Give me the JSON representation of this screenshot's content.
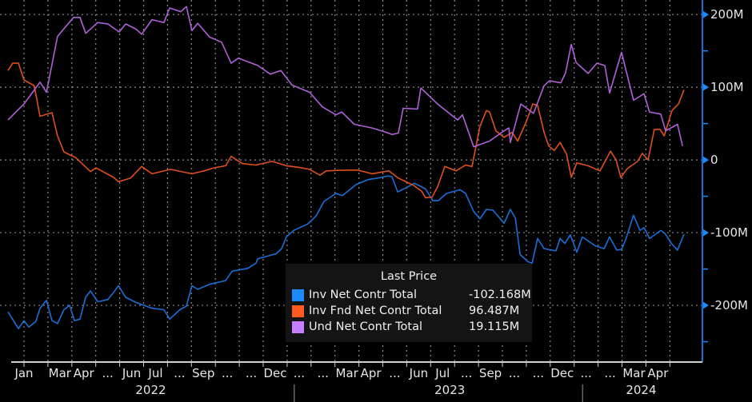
{
  "chart_data": {
    "type": "line",
    "x_unit_note_key": "x values are months since 2022-02-01",
    "xlim": [
      -1.003,
      28.36
    ],
    "ylim": [
      -278,
      220
    ],
    "grid": true,
    "legend_placement": "bottom-center",
    "legend": {
      "title": "Last Price",
      "entries": [
        {
          "name": "Inv Net Contr Total",
          "last": "-102.168M",
          "color": "#1a8cff"
        },
        {
          "name": "Inv Fnd Net Contr Total",
          "last": "96.487M",
          "color": "#ff5a1f"
        },
        {
          "name": "Und Net Contr Total",
          "last": "19.115M",
          "color": "#c77dff"
        }
      ]
    },
    "y_ticks": [
      {
        "value": 200,
        "label": "200M"
      },
      {
        "value": 100,
        "label": "100M"
      },
      {
        "value": 0,
        "label": "0"
      },
      {
        "value": -100,
        "label": "-100M"
      },
      {
        "value": -200,
        "label": "-200M"
      }
    ],
    "y_minor_ticks": [
      150,
      50,
      -50,
      -150,
      -250
    ],
    "x_tick_labels": [
      {
        "m": -0.5,
        "label": "Jan"
      },
      {
        "m": 1.5,
        "label": "Mar"
      },
      {
        "m": 2.5,
        "label": "Apr"
      },
      {
        "m": 3.5,
        "label": "..."
      },
      {
        "m": 4.5,
        "label": "Jun"
      },
      {
        "m": 5.5,
        "label": "Jul"
      },
      {
        "m": 6.5,
        "label": "..."
      },
      {
        "m": 7.5,
        "label": "Sep"
      },
      {
        "m": 8.5,
        "label": "..."
      },
      {
        "m": 9.5,
        "label": "..."
      },
      {
        "m": 10.5,
        "label": "Dec"
      },
      {
        "m": 11.5,
        "label": "..."
      },
      {
        "m": 12.5,
        "label": "..."
      },
      {
        "m": 13.5,
        "label": "Mar"
      },
      {
        "m": 14.5,
        "label": "Apr"
      },
      {
        "m": 15.5,
        "label": "..."
      },
      {
        "m": 16.5,
        "label": "Jun"
      },
      {
        "m": 17.5,
        "label": "Jul"
      },
      {
        "m": 18.5,
        "label": "..."
      },
      {
        "m": 19.5,
        "label": "Sep"
      },
      {
        "m": 20.5,
        "label": "..."
      },
      {
        "m": 21.5,
        "label": "..."
      },
      {
        "m": 22.5,
        "label": "Dec"
      },
      {
        "m": 23.5,
        "label": "..."
      },
      {
        "m": 24.5,
        "label": "..."
      },
      {
        "m": 25.5,
        "label": "Mar"
      },
      {
        "m": 26.5,
        "label": "Apr"
      }
    ],
    "year_labels": [
      {
        "m": 5.3,
        "label": "2022"
      },
      {
        "m": 17.8,
        "label": "2023"
      },
      {
        "m": 25.8,
        "label": "2024"
      }
    ],
    "year_separators": [
      11.3,
      23.35
    ],
    "series": [
      {
        "name": "Inv Net Contr Total",
        "color": "#1a6fd6",
        "x": [
          -0.67,
          -0.23,
          0,
          0.2,
          0.5,
          0.67,
          0.94,
          1.17,
          1.4,
          1.67,
          1.91,
          2.11,
          2.34,
          2.58,
          2.78,
          3.08,
          3.51,
          3.75,
          3.95,
          4.25,
          4.68,
          5.35,
          5.85,
          6.09,
          6.52,
          6.79,
          7.02,
          7.26,
          7.76,
          8.43,
          8.7,
          9.36,
          9.7,
          9.77,
          10.54,
          10.77,
          10.97,
          11.27,
          11.87,
          12.21,
          12.54,
          13.04,
          13.31,
          13.88,
          14.38,
          14.78,
          15.22,
          15.38,
          15.62,
          16.05,
          16.32,
          16.79,
          17.09,
          17.32,
          17.66,
          18.23,
          18.46,
          18.8,
          19.06,
          19.33,
          19.6,
          20.07,
          20.33,
          20.54,
          20.74,
          21.07,
          21.24,
          21.47,
          21.74,
          22.24,
          22.41,
          22.61,
          22.84,
          23.11,
          23.34,
          23.88,
          24.25,
          24.48,
          24.78,
          24.98,
          25.15,
          25.48,
          25.75,
          25.92,
          26.15,
          26.62,
          26.79,
          27.09,
          27.32,
          27.59
        ],
        "y": [
          -209,
          -232,
          -221,
          -230,
          -222,
          -204,
          -193,
          -221,
          -225,
          -206,
          -200,
          -221,
          -219,
          -189,
          -180,
          -195,
          -192,
          -182,
          -173,
          -189,
          -196,
          -204,
          -206,
          -219,
          -206,
          -201,
          -173,
          -178,
          -171,
          -166,
          -153,
          -149,
          -142,
          -136,
          -129,
          -122,
          -106,
          -97,
          -88,
          -77,
          -57,
          -46,
          -49,
          -34,
          -27,
          -25,
          -22,
          -23,
          -44,
          -37,
          -32,
          -40,
          -56,
          -56,
          -46,
          -41,
          -46,
          -71,
          -81,
          -68,
          -69,
          -87,
          -68,
          -80,
          -130,
          -140,
          -142,
          -108,
          -122,
          -125,
          -108,
          -115,
          -103,
          -127,
          -106,
          -118,
          -122,
          -106,
          -124,
          -123,
          -110,
          -76,
          -97,
          -93,
          -108,
          -97,
          -101,
          -116,
          -124,
          -102.168
        ]
      },
      {
        "name": "Inv Fnd Net Contr Total",
        "color": "#e0501e",
        "x": [
          -0.67,
          -0.47,
          -0.23,
          0,
          0.43,
          0.67,
          1.17,
          1.4,
          1.67,
          2.17,
          2.78,
          3.01,
          3.75,
          3.95,
          4.45,
          4.92,
          5.35,
          6.12,
          7.02,
          7.53,
          7.93,
          8.43,
          8.66,
          9.13,
          9.7,
          10.37,
          10.97,
          11.44,
          11.94,
          12.37,
          12.64,
          13.28,
          13.95,
          14.55,
          15.25,
          15.65,
          16.29,
          16.62,
          16.79,
          17.06,
          17.29,
          17.59,
          18.06,
          18.46,
          18.73,
          19.06,
          19.33,
          19.46,
          19.73,
          20.07,
          20.4,
          20.64,
          21.0,
          21.27,
          21.47,
          21.74,
          21.94,
          22.17,
          22.41,
          22.68,
          22.88,
          23.11,
          23.58,
          24.08,
          24.52,
          24.75,
          24.95,
          25.22,
          25.65,
          25.85,
          26.09,
          26.35,
          26.59,
          26.76,
          27.09,
          27.36,
          27.59
        ],
        "y": [
          123,
          133,
          133,
          110,
          102,
          60,
          65,
          33,
          11,
          3,
          -16,
          -11,
          -24,
          -30,
          -25,
          -9,
          -19,
          -13,
          -19,
          -15,
          -11,
          -8,
          5,
          -5,
          -7,
          -2,
          -8,
          -10,
          -13,
          -21,
          -15,
          -14,
          -14,
          -19,
          -15,
          -25,
          -35,
          -43,
          -52,
          -51,
          -37,
          -9,
          -15,
          -7,
          -9,
          46,
          68,
          66,
          40,
          31,
          38,
          26,
          53,
          77,
          75,
          38,
          19,
          13,
          24,
          8,
          -24,
          -4,
          -8,
          -15,
          12,
          0,
          -24,
          -12,
          -2,
          9,
          0,
          42,
          42,
          33,
          68,
          77,
          96.487
        ]
      },
      {
        "name": "Und Net Contr Total",
        "color": "#b060d8",
        "x": [
          -0.67,
          0,
          0.67,
          0.94,
          1.4,
          2.07,
          2.34,
          2.58,
          3.08,
          3.51,
          3.98,
          4.25,
          4.68,
          4.92,
          5.35,
          5.85,
          6.09,
          6.56,
          6.79,
          7.02,
          7.26,
          7.76,
          8.26,
          8.66,
          8.96,
          9.77,
          10.3,
          10.74,
          11.2,
          11.94,
          12.47,
          13.04,
          13.28,
          13.81,
          14.55,
          15.15,
          15.38,
          15.65,
          15.85,
          16.45,
          16.59,
          17.29,
          18.13,
          18.33,
          18.8,
          19.46,
          20.07,
          20.27,
          20.33,
          20.77,
          21.3,
          21.74,
          21.97,
          22.44,
          22.64,
          22.88,
          23.08,
          23.58,
          23.95,
          24.28,
          24.48,
          24.98,
          25.48,
          25.92,
          26.15,
          26.62,
          26.82,
          27.32,
          27.53
        ],
        "y": [
          55,
          77,
          107,
          93,
          170,
          196,
          196,
          174,
          189,
          187,
          176,
          187,
          180,
          173,
          193,
          189,
          209,
          204,
          211,
          178,
          188,
          169,
          162,
          133,
          140,
          130,
          118,
          123,
          103,
          93,
          73,
          62,
          66,
          49,
          44,
          38,
          35,
          37,
          71,
          70,
          99,
          77,
          55,
          62,
          18,
          26,
          40,
          44,
          24,
          77,
          64,
          102,
          109,
          106,
          120,
          159,
          134,
          119,
          133,
          130,
          92,
          148,
          82,
          91,
          66,
          63,
          40,
          49,
          19.115
        ]
      }
    ]
  }
}
